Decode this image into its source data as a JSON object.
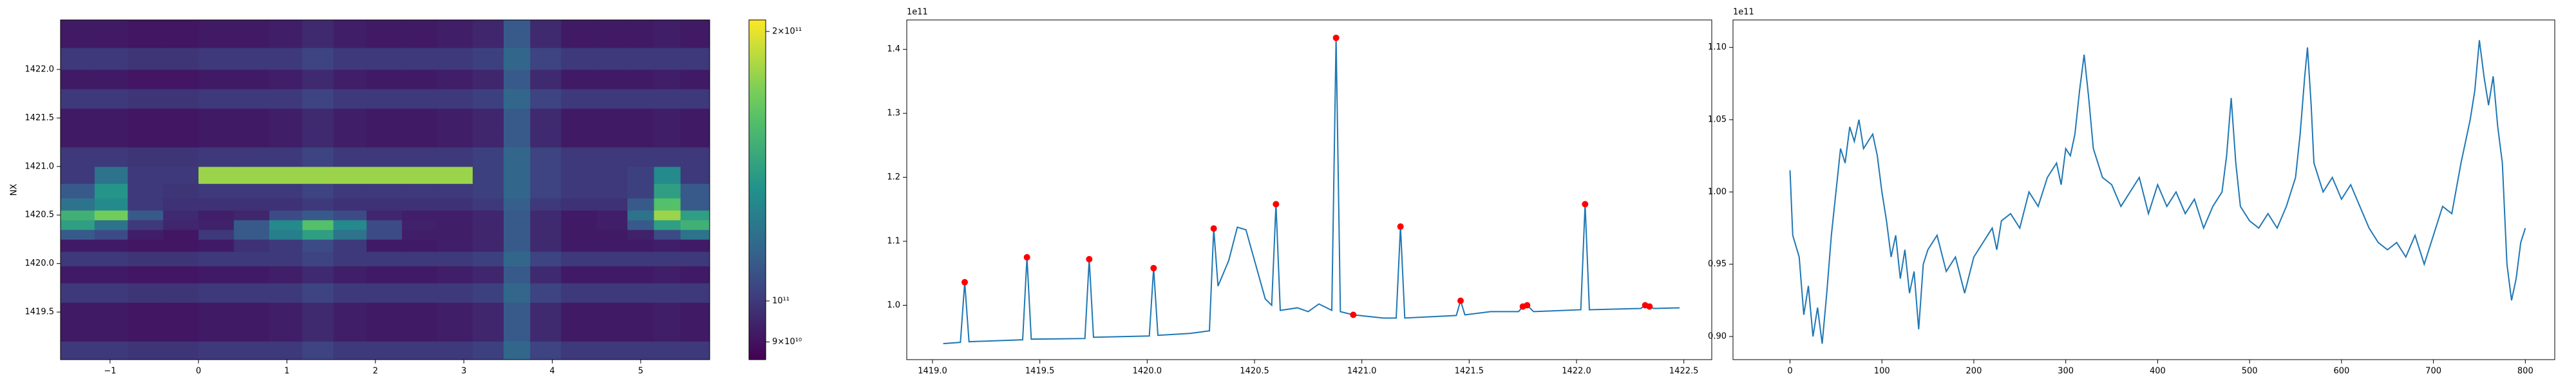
{
  "chart_data": [
    {
      "type": "heatmap",
      "ylabel": "NX",
      "colormap": "viridis",
      "color_scale": "log",
      "xlim": [
        -1.56,
        5.78
      ],
      "ylim": [
        1419.01,
        1422.51
      ],
      "xticks": [
        {
          "value": -1,
          "label": "−1"
        },
        0,
        1,
        2,
        3,
        4,
        5
      ],
      "yticks": [
        1419.5,
        {
          "value": 1420,
          "label": "1420.0"
        },
        1420.5,
        {
          "value": 1421,
          "label": "1421.0"
        },
        1421.5,
        {
          "value": 1422,
          "label": "1422.0"
        }
      ],
      "clim": [
        86000000000.0,
        206000000000.0
      ],
      "cticks": [
        {
          "value": 90000000000.0,
          "label": "9×10¹⁰"
        },
        {
          "value": 100000000000.0,
          "label": "10¹¹"
        },
        {
          "value": 200000000000.0,
          "label": "2×10¹¹"
        }
      ],
      "x": [
        -1.35,
        -1.0,
        -0.6,
        -0.2,
        0.2,
        0.6,
        1.0,
        1.35,
        1.7,
        2.1,
        2.5,
        2.9,
        3.3,
        3.6,
        3.9,
        4.3,
        4.7,
        5.0,
        5.3,
        5.6
      ],
      "y": [
        1419.1,
        1419.3,
        1419.5,
        1419.7,
        1419.9,
        1420.05,
        1420.2,
        1420.3,
        1420.4,
        1420.5,
        1420.6,
        1420.75,
        1420.9,
        1421.1,
        1421.3,
        1421.5,
        1421.7,
        1421.9,
        1422.1,
        1422.35
      ],
      "z": [
        [
          100000000000.0,
          100000000000.0,
          99000000000.0,
          99000000000.0,
          100000000000.0,
          100000000000.0,
          100000000000.0,
          103000000000.0,
          100000000000.0,
          100000000000.0,
          100000000000.0,
          100000000000.0,
          102000000000.0,
          115000000000.0,
          103000000000.0,
          100000000000.0,
          100000000000.0,
          100000000000.0,
          100000000000.0,
          100000000000.0
        ],
        [
          92000000000.0,
          92000000000.0,
          91000000000.0,
          91000000000.0,
          92000000000.0,
          92000000000.0,
          93000000000.0,
          96000000000.0,
          93000000000.0,
          92000000000.0,
          92000000000.0,
          93000000000.0,
          95000000000.0,
          110000000000.0,
          96000000000.0,
          92000000000.0,
          92000000000.0,
          92000000000.0,
          93000000000.0,
          92000000000.0
        ],
        [
          92000000000.0,
          92000000000.0,
          91000000000.0,
          91000000000.0,
          92000000000.0,
          92000000000.0,
          93000000000.0,
          96000000000.0,
          93000000000.0,
          92000000000.0,
          92000000000.0,
          93000000000.0,
          95000000000.0,
          110000000000.0,
          96000000000.0,
          92000000000.0,
          92000000000.0,
          92000000000.0,
          93000000000.0,
          92000000000.0
        ],
        [
          100000000000.0,
          100000000000.0,
          99000000000.0,
          99000000000.0,
          100000000000.0,
          100000000000.0,
          100000000000.0,
          103000000000.0,
          100000000000.0,
          100000000000.0,
          100000000000.0,
          100000000000.0,
          102000000000.0,
          115000000000.0,
          103000000000.0,
          100000000000.0,
          100000000000.0,
          100000000000.0,
          100000000000.0,
          100000000000.0
        ],
        [
          92000000000.0,
          92000000000.0,
          91000000000.0,
          91000000000.0,
          92000000000.0,
          92000000000.0,
          93000000000.0,
          96000000000.0,
          93000000000.0,
          92000000000.0,
          92000000000.0,
          93000000000.0,
          95000000000.0,
          110000000000.0,
          96000000000.0,
          92000000000.0,
          92000000000.0,
          92000000000.0,
          93000000000.0,
          92000000000.0
        ],
        [
          100000000000.0,
          100000000000.0,
          99000000000.0,
          99000000000.0,
          100000000000.0,
          100000000000.0,
          100000000000.0,
          103000000000.0,
          100000000000.0,
          100000000000.0,
          100000000000.0,
          100000000000.0,
          102000000000.0,
          115000000000.0,
          103000000000.0,
          100000000000.0,
          100000000000.0,
          100000000000.0,
          100000000000.0,
          100000000000.0
        ],
        [
          92000000000.0,
          92000000000.0,
          91000000000.0,
          91000000000.0,
          92000000000.0,
          98000000000.0,
          100000000000.0,
          105000000000.0,
          100000000000.0,
          92000000000.0,
          92000000000.0,
          93000000000.0,
          95000000000.0,
          110000000000.0,
          96000000000.0,
          92000000000.0,
          92000000000.0,
          92000000000.0,
          93000000000.0,
          92000000000.0
        ],
        [
          110000000000.0,
          105000000000.0,
          93000000000.0,
          91000000000.0,
          100000000000.0,
          110000000000.0,
          125000000000.0,
          140000000000.0,
          120000000000.0,
          105000000000.0,
          93000000000.0,
          93000000000.0,
          95000000000.0,
          110000000000.0,
          96000000000.0,
          92000000000.0,
          92000000000.0,
          94000000000.0,
          105000000000.0,
          120000000000.0
        ],
        [
          140000000000.0,
          120000000000.0,
          100000000000.0,
          95000000000.0,
          94000000000.0,
          110000000000.0,
          130000000000.0,
          160000000000.0,
          130000000000.0,
          105000000000.0,
          94000000000.0,
          93000000000.0,
          95000000000.0,
          110000000000.0,
          96000000000.0,
          92000000000.0,
          93000000000.0,
          110000000000.0,
          140000000000.0,
          150000000000.0
        ],
        [
          150000000000.0,
          170000000000.0,
          110000000000.0,
          96000000000.0,
          93000000000.0,
          95000000000.0,
          105000000000.0,
          110000000000.0,
          105000000000.0,
          95000000000.0,
          93000000000.0,
          93000000000.0,
          95000000000.0,
          110000000000.0,
          96000000000.0,
          92000000000.0,
          93000000000.0,
          120000000000.0,
          180000000000.0,
          140000000000.0
        ],
        [
          120000000000.0,
          130000000000.0,
          100000000000.0,
          98000000000.0,
          98000000000.0,
          98000000000.0,
          98000000000.0,
          100000000000.0,
          98000000000.0,
          98000000000.0,
          98000000000.0,
          98000000000.0,
          100000000000.0,
          112000000000.0,
          100000000000.0,
          98000000000.0,
          98000000000.0,
          110000000000.0,
          160000000000.0,
          110000000000.0
        ],
        [
          110000000000.0,
          135000000000.0,
          100000000000.0,
          99000000000.0,
          100000000000.0,
          100000000000.0,
          100000000000.0,
          103000000000.0,
          100000000000.0,
          100000000000.0,
          100000000000.0,
          100000000000.0,
          102000000000.0,
          115000000000.0,
          103000000000.0,
          100000000000.0,
          100000000000.0,
          102000000000.0,
          140000000000.0,
          110000000000.0
        ],
        [
          100000000000.0,
          120000000000.0,
          100000000000.0,
          100000000000.0,
          180000000000.0,
          180000000000.0,
          180000000000.0,
          180000000000.0,
          180000000000.0,
          180000000000.0,
          180000000000.0,
          180000000000.0,
          102000000000.0,
          115000000000.0,
          103000000000.0,
          100000000000.0,
          100000000000.0,
          102000000000.0,
          130000000000.0,
          100000000000.0
        ],
        [
          100000000000.0,
          100000000000.0,
          99000000000.0,
          99000000000.0,
          100000000000.0,
          100000000000.0,
          100000000000.0,
          103000000000.0,
          100000000000.0,
          100000000000.0,
          100000000000.0,
          100000000000.0,
          102000000000.0,
          115000000000.0,
          103000000000.0,
          100000000000.0,
          100000000000.0,
          100000000000.0,
          100000000000.0,
          100000000000.0
        ],
        [
          92000000000.0,
          92000000000.0,
          91000000000.0,
          91000000000.0,
          92000000000.0,
          92000000000.0,
          93000000000.0,
          96000000000.0,
          93000000000.0,
          92000000000.0,
          92000000000.0,
          93000000000.0,
          95000000000.0,
          110000000000.0,
          96000000000.0,
          92000000000.0,
          92000000000.0,
          92000000000.0,
          93000000000.0,
          92000000000.0
        ],
        [
          92000000000.0,
          92000000000.0,
          91000000000.0,
          91000000000.0,
          92000000000.0,
          92000000000.0,
          93000000000.0,
          96000000000.0,
          93000000000.0,
          92000000000.0,
          92000000000.0,
          93000000000.0,
          95000000000.0,
          110000000000.0,
          96000000000.0,
          92000000000.0,
          92000000000.0,
          92000000000.0,
          93000000000.0,
          92000000000.0
        ],
        [
          100000000000.0,
          100000000000.0,
          99000000000.0,
          99000000000.0,
          100000000000.0,
          100000000000.0,
          100000000000.0,
          103000000000.0,
          100000000000.0,
          100000000000.0,
          100000000000.0,
          100000000000.0,
          102000000000.0,
          115000000000.0,
          103000000000.0,
          100000000000.0,
          100000000000.0,
          100000000000.0,
          100000000000.0,
          100000000000.0
        ],
        [
          92000000000.0,
          92000000000.0,
          91000000000.0,
          91000000000.0,
          92000000000.0,
          92000000000.0,
          93000000000.0,
          96000000000.0,
          93000000000.0,
          92000000000.0,
          92000000000.0,
          93000000000.0,
          95000000000.0,
          110000000000.0,
          96000000000.0,
          92000000000.0,
          92000000000.0,
          92000000000.0,
          93000000000.0,
          92000000000.0
        ],
        [
          100000000000.0,
          100000000000.0,
          99000000000.0,
          99000000000.0,
          100000000000.0,
          100000000000.0,
          100000000000.0,
          103000000000.0,
          100000000000.0,
          100000000000.0,
          100000000000.0,
          100000000000.0,
          102000000000.0,
          115000000000.0,
          103000000000.0,
          100000000000.0,
          100000000000.0,
          100000000000.0,
          100000000000.0,
          100000000000.0
        ],
        [
          92000000000.0,
          92000000000.0,
          91000000000.0,
          91000000000.0,
          92000000000.0,
          92000000000.0,
          93000000000.0,
          96000000000.0,
          93000000000.0,
          92000000000.0,
          92000000000.0,
          93000000000.0,
          95000000000.0,
          110000000000.0,
          96000000000.0,
          92000000000.0,
          92000000000.0,
          92000000000.0,
          93000000000.0,
          92000000000.0
        ]
      ]
    },
    {
      "type": "line",
      "y_offset": "1e11",
      "xlim": [
        1418.88,
        1422.63
      ],
      "ylim": [
        0.915,
        1.446
      ],
      "xticks": [
        {
          "value": 1419,
          "label": "1419.0"
        },
        1419.5,
        {
          "value": 1420,
          "label": "1420.0"
        },
        1420.5,
        {
          "value": 1421,
          "label": "1421.0"
        },
        1421.5,
        {
          "value": 1422,
          "label": "1422.0"
        },
        1422.5
      ],
      "yticks": [
        {
          "value": 1,
          "label": "1.0"
        },
        1.1,
        1.2,
        1.3,
        1.4
      ],
      "x": [
        1419.05,
        1419.13,
        1419.15,
        1419.17,
        1419.42,
        1419.44,
        1419.46,
        1419.71,
        1419.73,
        1419.75,
        1420.01,
        1420.03,
        1420.05,
        1420.2,
        1420.29,
        1420.31,
        1420.33,
        1420.38,
        1420.42,
        1420.46,
        1420.5,
        1420.55,
        1420.58,
        1420.6,
        1420.62,
        1420.7,
        1420.75,
        1420.8,
        1420.86,
        1420.88,
        1420.9,
        1420.96,
        1421.1,
        1421.16,
        1421.18,
        1421.2,
        1421.44,
        1421.46,
        1421.48,
        1421.6,
        1421.73,
        1421.75,
        1421.77,
        1421.8,
        1422.02,
        1422.04,
        1422.06,
        1422.3,
        1422.32,
        1422.34,
        1422.36,
        1422.48
      ],
      "series": [
        {
          "color": "#1f77b4",
          "values": [
            0.94,
            0.942,
            1.036,
            0.943,
            0.946,
            1.075,
            0.947,
            0.948,
            1.072,
            0.95,
            0.952,
            1.058,
            0.953,
            0.956,
            0.96,
            1.12,
            1.03,
            1.07,
            1.122,
            1.118,
            1.07,
            1.01,
            1.0,
            1.158,
            0.992,
            0.996,
            0.99,
            1.002,
            0.992,
            1.418,
            0.99,
            0.985,
            0.98,
            0.98,
            1.123,
            0.98,
            0.984,
            1.007,
            0.985,
            0.99,
            0.99,
            0.998,
            1.0,
            0.99,
            0.993,
            1.158,
            0.993,
            0.995,
            1.0,
            0.998,
            0.995,
            0.996
          ]
        }
      ],
      "markers": {
        "color": "#ff0000",
        "x": [
          1419.15,
          1419.44,
          1419.73,
          1420.03,
          1420.31,
          1420.6,
          1420.88,
          1420.96,
          1421.18,
          1421.46,
          1421.75,
          1421.77,
          1422.04,
          1422.32,
          1422.34
        ],
        "values": [
          1.036,
          1.075,
          1.072,
          1.058,
          1.12,
          1.158,
          1.418,
          0.985,
          1.123,
          1.007,
          0.998,
          1.0,
          1.158,
          1.0,
          0.998
        ]
      }
    },
    {
      "type": "line",
      "y_offset": "1e11",
      "xlim": [
        -62,
        832
      ],
      "ylim": [
        0.884,
        1.119
      ],
      "xticks": [
        0,
        100,
        200,
        300,
        400,
        500,
        600,
        700,
        800
      ],
      "yticks": [
        {
          "value": 0.9,
          "label": "0.90"
        },
        0.95,
        {
          "value": 1,
          "label": "1.00"
        },
        1.05,
        {
          "value": 1.1,
          "label": "1.10"
        }
      ],
      "x": [
        0,
        3,
        10,
        15,
        20,
        25,
        30,
        35,
        40,
        45,
        50,
        55,
        60,
        65,
        70,
        75,
        80,
        90,
        95,
        100,
        105,
        110,
        115,
        120,
        125,
        130,
        135,
        140,
        145,
        150,
        160,
        170,
        180,
        190,
        200,
        210,
        220,
        225,
        230,
        240,
        250,
        260,
        270,
        280,
        290,
        295,
        300,
        305,
        310,
        315,
        320,
        325,
        330,
        340,
        350,
        360,
        370,
        380,
        390,
        400,
        410,
        420,
        430,
        440,
        450,
        460,
        470,
        475,
        480,
        485,
        490,
        500,
        510,
        520,
        530,
        540,
        550,
        555,
        560,
        563,
        567,
        570,
        580,
        590,
        600,
        610,
        620,
        630,
        640,
        650,
        660,
        670,
        680,
        690,
        700,
        710,
        720,
        730,
        740,
        745,
        750,
        755,
        760,
        765,
        770,
        775,
        780,
        785,
        790,
        795,
        800
      ],
      "series": [
        {
          "color": "#1f77b4",
          "values": [
            1.015,
            0.97,
            0.955,
            0.915,
            0.935,
            0.9,
            0.92,
            0.895,
            0.93,
            0.97,
            1.0,
            1.03,
            1.02,
            1.045,
            1.035,
            1.05,
            1.03,
            1.04,
            1.025,
            1.0,
            0.98,
            0.955,
            0.97,
            0.94,
            0.96,
            0.93,
            0.945,
            0.905,
            0.95,
            0.96,
            0.97,
            0.945,
            0.955,
            0.93,
            0.955,
            0.965,
            0.975,
            0.96,
            0.98,
            0.985,
            0.975,
            1.0,
            0.99,
            1.01,
            1.02,
            1.005,
            1.03,
            1.025,
            1.04,
            1.07,
            1.095,
            1.065,
            1.03,
            1.01,
            1.005,
            0.99,
            1.0,
            1.01,
            0.985,
            1.005,
            0.99,
            1.0,
            0.985,
            0.995,
            0.975,
            0.99,
            1.0,
            1.025,
            1.065,
            1.02,
            0.99,
            0.98,
            0.975,
            0.985,
            0.975,
            0.99,
            1.01,
            1.04,
            1.08,
            1.1,
            1.06,
            1.02,
            1.0,
            1.01,
            0.995,
            1.005,
            0.99,
            0.975,
            0.965,
            0.96,
            0.965,
            0.955,
            0.97,
            0.95,
            0.97,
            0.99,
            0.985,
            1.02,
            1.05,
            1.07,
            1.105,
            1.08,
            1.06,
            1.08,
            1.045,
            1.02,
            0.95,
            0.925,
            0.94,
            0.965,
            0.975
          ]
        }
      ]
    }
  ]
}
